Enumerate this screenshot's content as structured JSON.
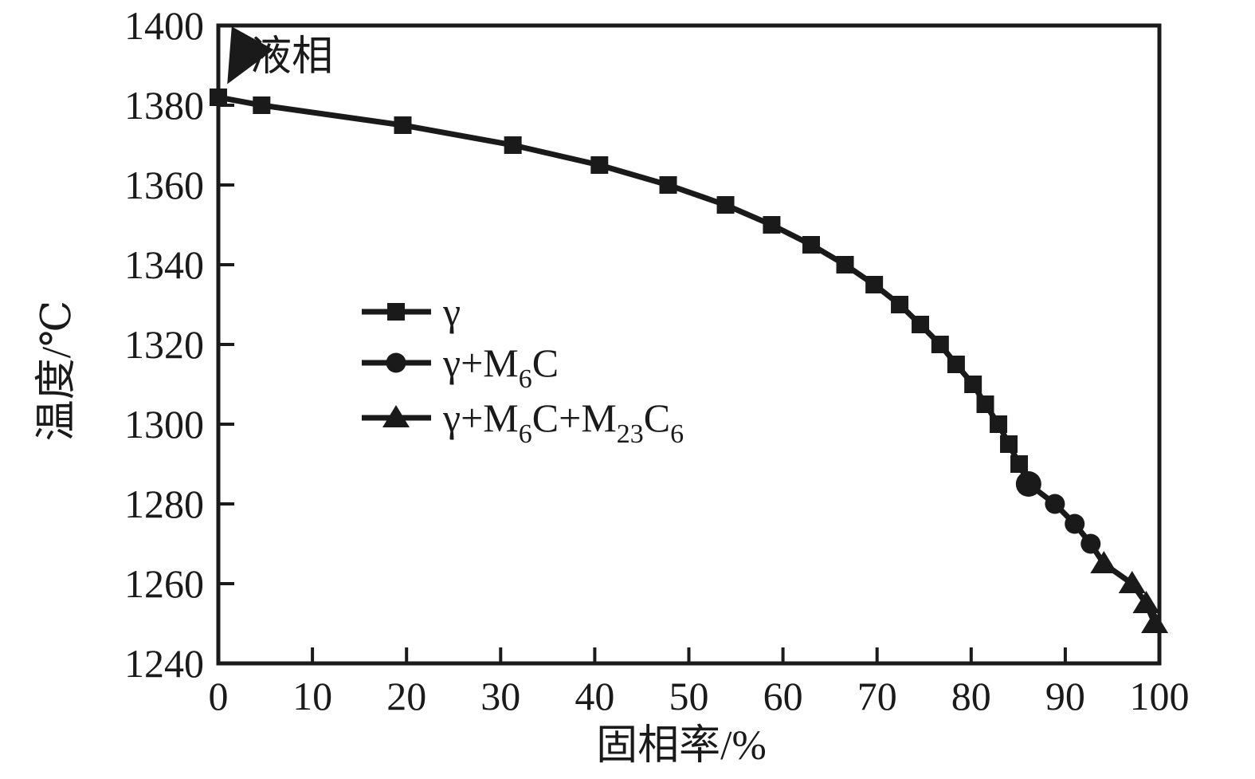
{
  "figure": {
    "background_color": "#ffffff",
    "ink_color": "#1a1a1a"
  },
  "chart_data": {
    "type": "line",
    "title": "",
    "xlabel": "固相率/%",
    "ylabel": "温度/℃",
    "xlim": [
      0,
      100
    ],
    "ylim": [
      1240,
      1400
    ],
    "x_ticks": [
      0,
      10,
      20,
      30,
      40,
      50,
      60,
      70,
      80,
      90,
      100
    ],
    "y_ticks": [
      1240,
      1260,
      1280,
      1300,
      1320,
      1340,
      1360,
      1380,
      1400
    ],
    "grid": false,
    "legend_position": "inside-center-left",
    "annotation": {
      "text": "液相",
      "points_to": [
        0,
        1382
      ]
    },
    "series": [
      {
        "name": "γ",
        "marker": "square",
        "points": [
          [
            0,
            1382
          ],
          [
            4.6,
            1380
          ],
          [
            19.6,
            1375
          ],
          [
            31.3,
            1370
          ],
          [
            40.5,
            1365
          ],
          [
            47.8,
            1360
          ],
          [
            53.9,
            1355
          ],
          [
            58.8,
            1350
          ],
          [
            63.0,
            1345
          ],
          [
            66.6,
            1340
          ],
          [
            69.7,
            1335
          ],
          [
            72.4,
            1330
          ],
          [
            74.6,
            1325
          ],
          [
            76.7,
            1320
          ],
          [
            78.4,
            1315
          ],
          [
            80.2,
            1310
          ],
          [
            81.5,
            1305
          ],
          [
            82.9,
            1300
          ],
          [
            84.0,
            1295
          ],
          [
            85.1,
            1290
          ]
        ]
      },
      {
        "name": "γ+M6C",
        "marker": "circle",
        "points": [
          [
            86.1,
            1285
          ],
          [
            88.9,
            1280
          ],
          [
            91.0,
            1275
          ],
          [
            92.7,
            1270
          ]
        ]
      },
      {
        "name": "γ+M6C+M23C6",
        "marker": "triangle",
        "points": [
          [
            94.1,
            1265
          ],
          [
            97.1,
            1260
          ],
          [
            98.6,
            1255
          ],
          [
            99.5,
            1250
          ]
        ]
      }
    ]
  },
  "legend": {
    "entries": [
      {
        "marker": "square",
        "segments": [
          {
            "t": "γ",
            "sub": false
          }
        ]
      },
      {
        "marker": "circle",
        "segments": [
          {
            "t": "γ+M",
            "sub": false
          },
          {
            "t": "6",
            "sub": true
          },
          {
            "t": "C",
            "sub": false
          }
        ]
      },
      {
        "marker": "triangle",
        "segments": [
          {
            "t": "γ+M",
            "sub": false
          },
          {
            "t": "6",
            "sub": true
          },
          {
            "t": "C+M",
            "sub": false
          },
          {
            "t": "23",
            "sub": true
          },
          {
            "t": "C",
            "sub": false
          },
          {
            "t": "6",
            "sub": true
          }
        ]
      }
    ]
  }
}
